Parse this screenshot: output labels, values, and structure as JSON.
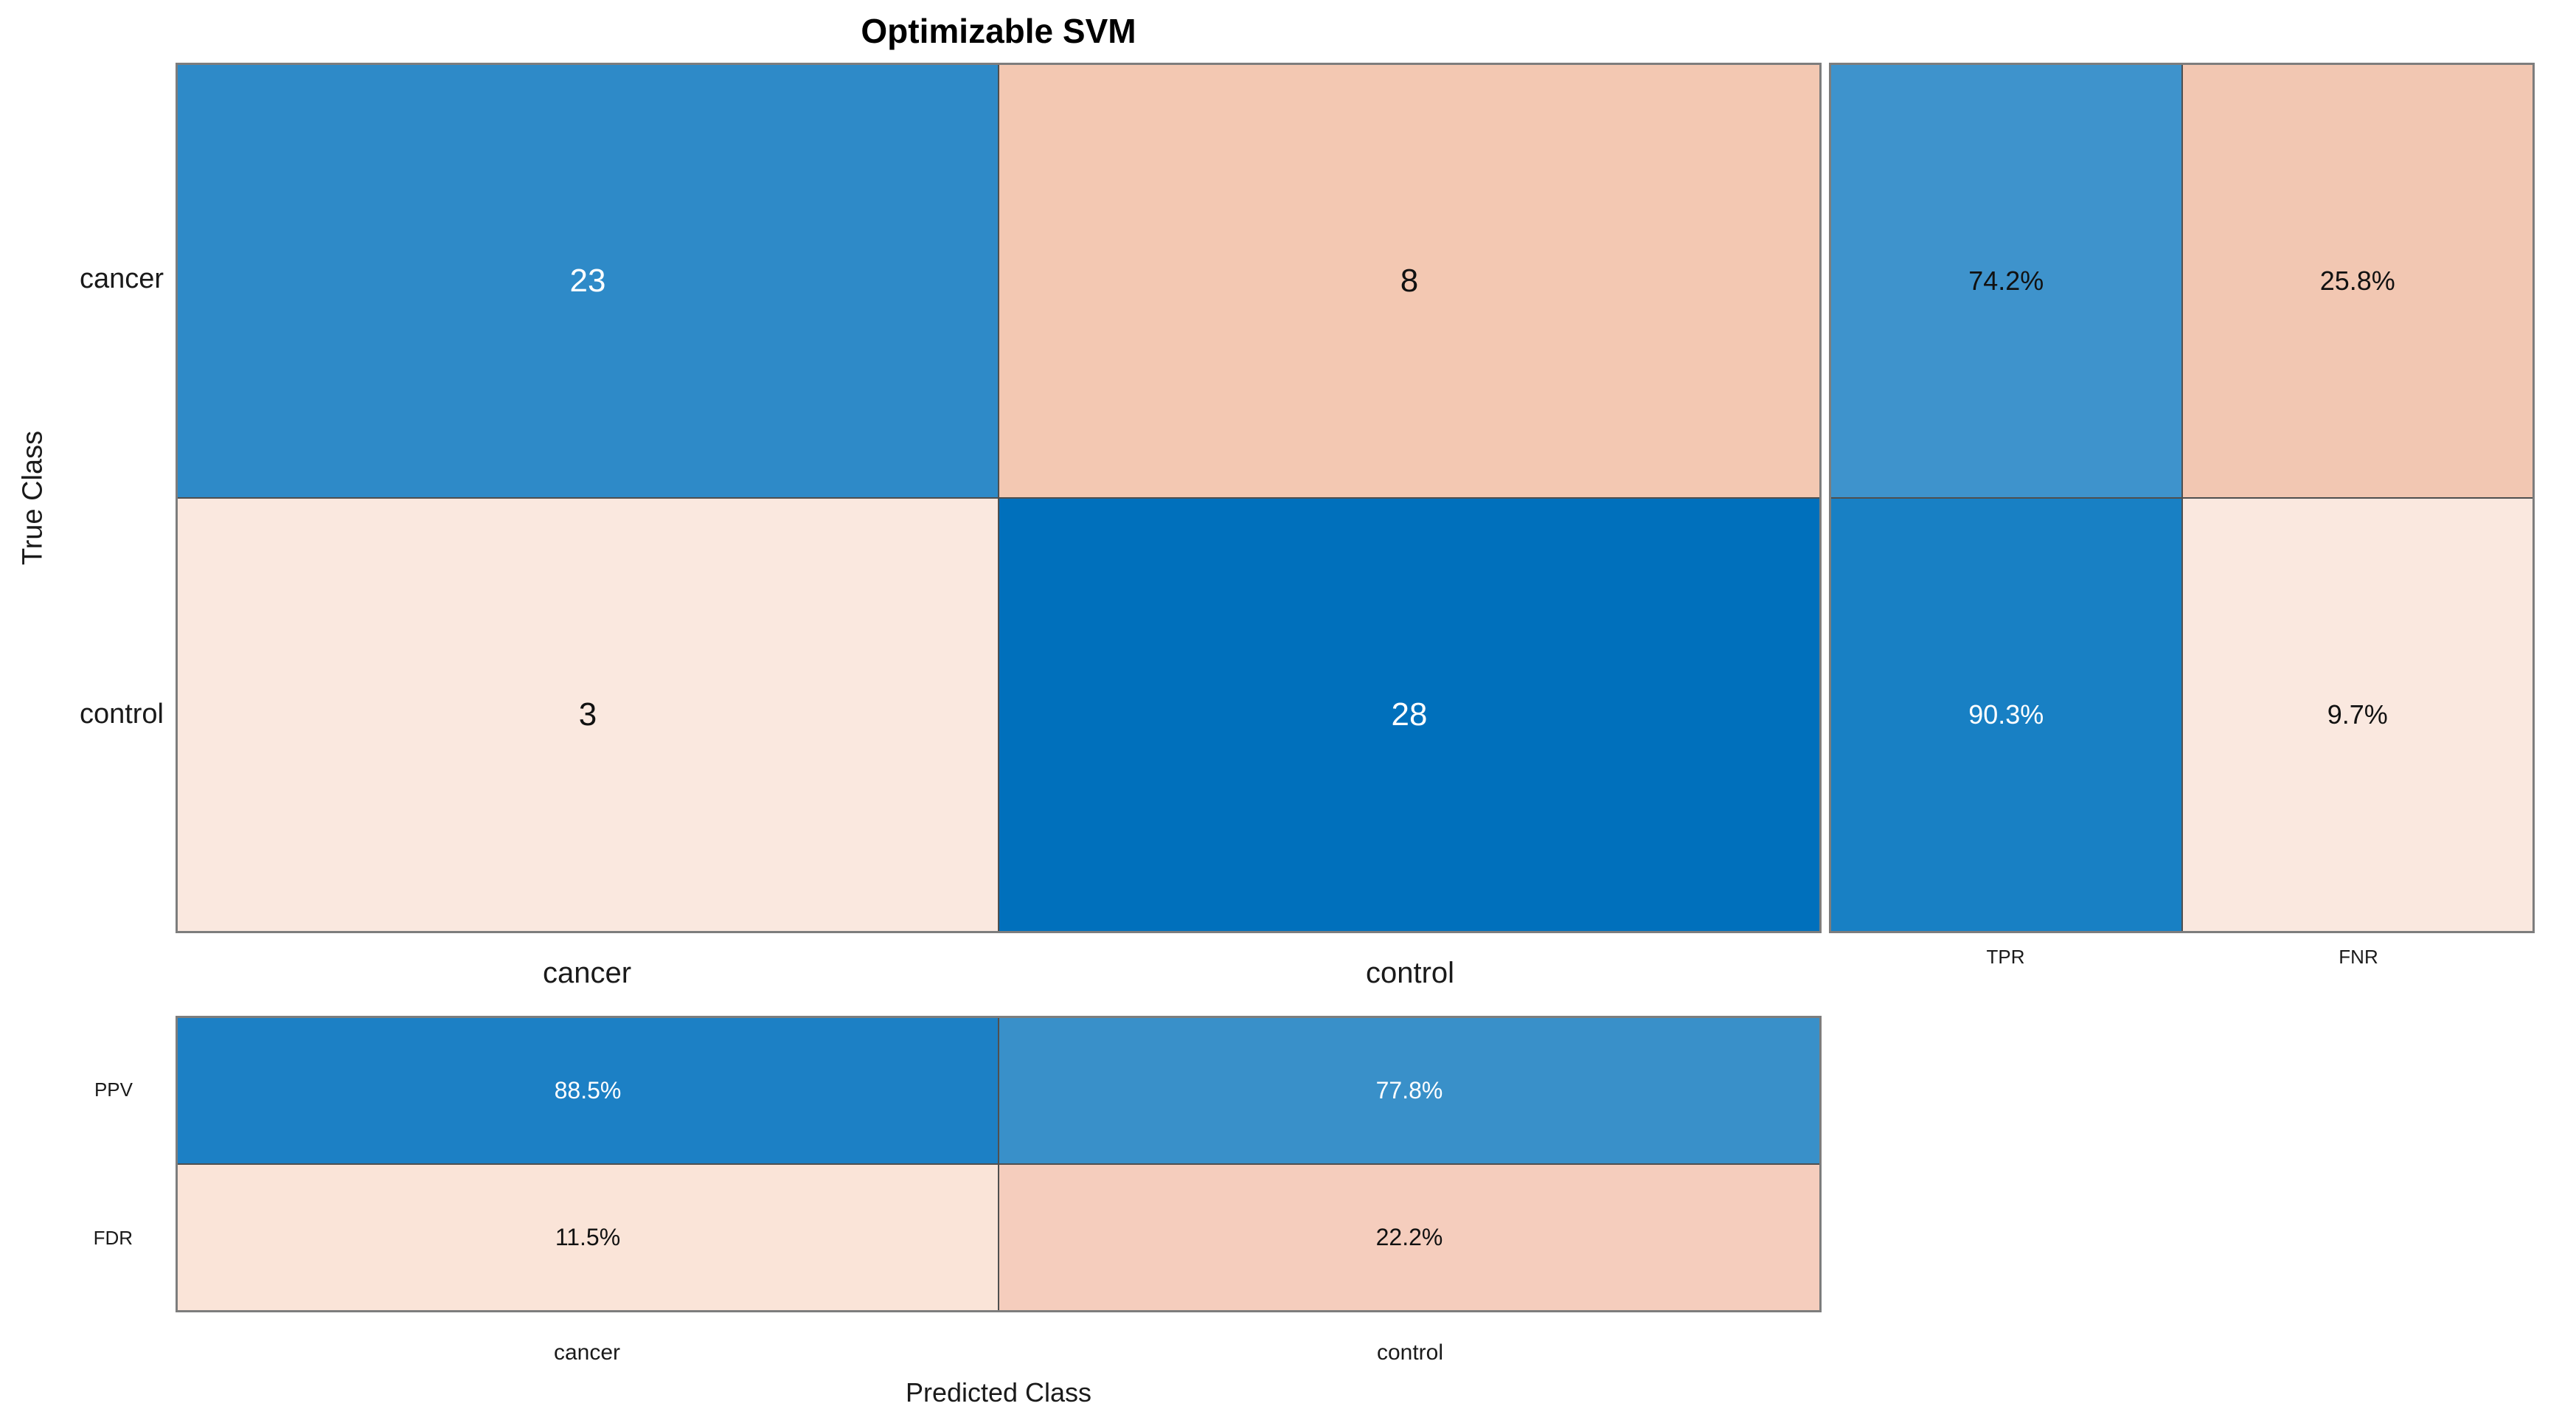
{
  "title": "Optimizable SVM",
  "axis": {
    "y_label": "True Class",
    "x_label": "Predicted Class",
    "row_labels": [
      "cancer",
      "control"
    ],
    "col_labels": [
      "cancer",
      "control"
    ],
    "bottom_col_labels": [
      "cancer",
      "control"
    ],
    "row_summary_labels": [
      "TPR",
      "FNR"
    ],
    "col_summary_labels": [
      "PPV",
      "FDR"
    ]
  },
  "matrix_cells": [
    {
      "value": "23",
      "bg": "#2e8ac8",
      "fg": "#ffffff"
    },
    {
      "value": "8",
      "bg": "#f3c8b2",
      "fg": "#111111"
    },
    {
      "value": "3",
      "bg": "#fae8df",
      "fg": "#111111"
    },
    {
      "value": "28",
      "bg": "#0070bc",
      "fg": "#ffffff"
    }
  ],
  "row_summary_cells": [
    {
      "value": "74.2%",
      "bg": "#3e93cc",
      "fg": "#111111"
    },
    {
      "value": "25.8%",
      "bg": "#f2c7b2",
      "fg": "#111111"
    },
    {
      "value": "90.3%",
      "bg": "#1880c4",
      "fg": "#ffffff"
    },
    {
      "value": "9.7%",
      "bg": "#fae8df",
      "fg": "#111111"
    }
  ],
  "col_summary_cells": [
    {
      "value": "88.5%",
      "bg": "#1c80c5",
      "fg": "#ffffff"
    },
    {
      "value": "77.8%",
      "bg": "#3990c9",
      "fg": "#ffffff"
    },
    {
      "value": "11.5%",
      "bg": "#fae4d8",
      "fg": "#111111"
    },
    {
      "value": "22.2%",
      "bg": "#f5cdbd",
      "fg": "#111111"
    }
  ],
  "chart_data": {
    "type": "heatmap",
    "subtype": "confusion-matrix",
    "title": "Optimizable SVM",
    "xlabel": "Predicted Class",
    "ylabel": "True Class",
    "classes": [
      "cancer",
      "control"
    ],
    "confusion_matrix": [
      [
        23,
        8
      ],
      [
        3,
        28
      ]
    ],
    "row_summary": {
      "TPR_pct": [
        74.2,
        90.3
      ],
      "FNR_pct": [
        25.8,
        9.7
      ]
    },
    "column_summary": {
      "PPV_pct": [
        88.5,
        77.8
      ],
      "FDR_pct": [
        11.5,
        22.2
      ]
    },
    "grid": false,
    "legend_position": "none",
    "colormap_positive": "#0070bc",
    "colormap_negative": "#f3c8b2"
  }
}
